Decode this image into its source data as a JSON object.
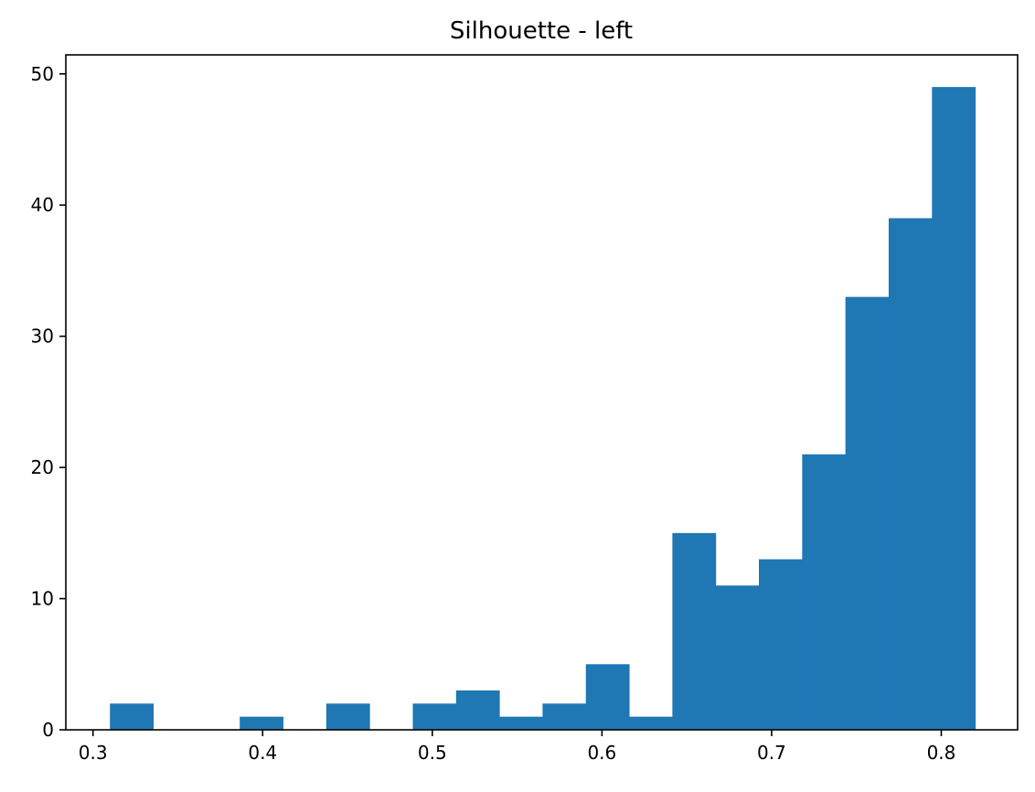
{
  "chart_data": {
    "type": "bar",
    "subtype": "histogram",
    "title": "Silhouette - left",
    "xlabel": "",
    "ylabel": "",
    "xlim": [
      0.284,
      0.845
    ],
    "ylim": [
      0,
      51.45
    ],
    "bin_width": 0.0255,
    "bins": [
      {
        "x0": 0.31,
        "x1": 0.3355,
        "count": 2
      },
      {
        "x0": 0.3355,
        "x1": 0.361,
        "count": 0
      },
      {
        "x0": 0.361,
        "x1": 0.3865,
        "count": 0
      },
      {
        "x0": 0.3865,
        "x1": 0.412,
        "count": 1
      },
      {
        "x0": 0.412,
        "x1": 0.4375,
        "count": 0
      },
      {
        "x0": 0.4375,
        "x1": 0.463,
        "count": 2
      },
      {
        "x0": 0.463,
        "x1": 0.4885,
        "count": 0
      },
      {
        "x0": 0.4885,
        "x1": 0.514,
        "count": 2
      },
      {
        "x0": 0.514,
        "x1": 0.5395,
        "count": 3
      },
      {
        "x0": 0.5395,
        "x1": 0.565,
        "count": 1
      },
      {
        "x0": 0.565,
        "x1": 0.5905,
        "count": 2
      },
      {
        "x0": 0.5905,
        "x1": 0.616,
        "count": 5
      },
      {
        "x0": 0.616,
        "x1": 0.6415,
        "count": 1
      },
      {
        "x0": 0.6415,
        "x1": 0.667,
        "count": 15
      },
      {
        "x0": 0.667,
        "x1": 0.6925,
        "count": 11
      },
      {
        "x0": 0.6925,
        "x1": 0.718,
        "count": 13
      },
      {
        "x0": 0.718,
        "x1": 0.7435,
        "count": 21
      },
      {
        "x0": 0.7435,
        "x1": 0.769,
        "count": 33
      },
      {
        "x0": 0.769,
        "x1": 0.7945,
        "count": 39
      },
      {
        "x0": 0.7945,
        "x1": 0.82,
        "count": 49
      }
    ],
    "x_ticks": [
      {
        "value": 0.3,
        "label": "0.3"
      },
      {
        "value": 0.4,
        "label": "0.4"
      },
      {
        "value": 0.5,
        "label": "0.5"
      },
      {
        "value": 0.6,
        "label": "0.6"
      },
      {
        "value": 0.7,
        "label": "0.7"
      },
      {
        "value": 0.8,
        "label": "0.8"
      }
    ],
    "y_ticks": [
      {
        "value": 0,
        "label": "0"
      },
      {
        "value": 10,
        "label": "10"
      },
      {
        "value": 20,
        "label": "20"
      },
      {
        "value": 30,
        "label": "30"
      },
      {
        "value": 40,
        "label": "40"
      },
      {
        "value": 50,
        "label": "50"
      }
    ],
    "bar_color": "#1f77b4",
    "grid": false,
    "legend": "none"
  }
}
